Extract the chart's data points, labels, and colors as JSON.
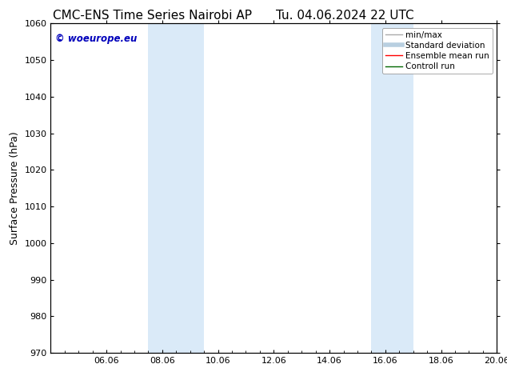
{
  "title_left": "CMC-ENS Time Series Nairobi AP",
  "title_right": "Tu. 04.06.2024 22 UTC",
  "ylabel": "Surface Pressure (hPa)",
  "ylim": [
    970,
    1060
  ],
  "yticks": [
    970,
    980,
    990,
    1000,
    1010,
    1020,
    1030,
    1040,
    1050,
    1060
  ],
  "xlim": [
    0,
    16
  ],
  "x_tick_labels": [
    "06.06",
    "08.06",
    "10.06",
    "12.06",
    "14.06",
    "16.06",
    "18.06",
    "20.06"
  ],
  "x_tick_positions": [
    2,
    4,
    6,
    8,
    10,
    12,
    14,
    16
  ],
  "shaded_bands": [
    {
      "x_start": 3.5,
      "x_end": 5.5
    },
    {
      "x_start": 11.5,
      "x_end": 13.0
    }
  ],
  "bg_color": "#ffffff",
  "band_color": "#daeaf8",
  "watermark_text": "© woeurope.eu",
  "watermark_color": "#0000bb",
  "legend_items": [
    {
      "label": "min/max",
      "color": "#aaaaaa",
      "lw": 1.0
    },
    {
      "label": "Standard deviation",
      "color": "#b8cfe0",
      "lw": 4.0
    },
    {
      "label": "Ensemble mean run",
      "color": "#ff0000",
      "lw": 1.0
    },
    {
      "label": "Controll run",
      "color": "#006600",
      "lw": 1.0
    }
  ],
  "title_fontsize": 11,
  "ylabel_fontsize": 9,
  "tick_fontsize": 8,
  "legend_fontsize": 7.5
}
